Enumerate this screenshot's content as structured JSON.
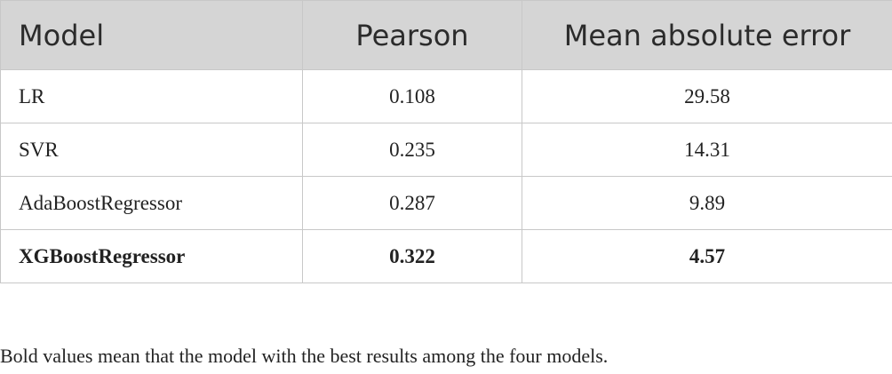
{
  "table": {
    "header": [
      "Model",
      "Pearson",
      "Mean absolute error"
    ],
    "rows": [
      {
        "cells": [
          "LR",
          "0.108",
          "29.58"
        ],
        "bold": false
      },
      {
        "cells": [
          "SVR",
          "0.235",
          "14.31"
        ],
        "bold": false
      },
      {
        "cells": [
          "AdaBoostRegressor",
          "0.287",
          "9.89"
        ],
        "bold": false
      },
      {
        "cells": [
          "XGBoostRegressor",
          "0.322",
          "4.57"
        ],
        "bold": true
      }
    ],
    "note": "Bold values mean that the model with the best results among the four models."
  }
}
